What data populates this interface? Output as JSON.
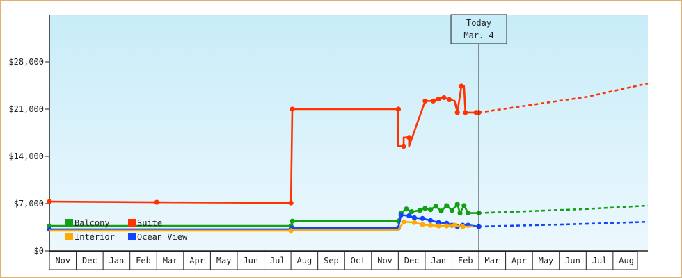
{
  "chart_data": {
    "type": "line",
    "title": "",
    "xlabel": "",
    "ylabel": "",
    "ylim": [
      0,
      35000
    ],
    "xlim": [
      0,
      22.3
    ],
    "y_ticks": [
      {
        "value": 0,
        "label": "$0"
      },
      {
        "value": 7000,
        "label": "$7,000"
      },
      {
        "value": 14000,
        "label": "$14,000"
      },
      {
        "value": 21000,
        "label": "$21,000"
      },
      {
        "value": 28000,
        "label": "$28,000"
      }
    ],
    "x_months": [
      "Nov",
      "Dec",
      "Jan",
      "Feb",
      "Mar",
      "Apr",
      "May",
      "Jun",
      "Jul",
      "Aug",
      "Sep",
      "Oct",
      "Nov",
      "Dec",
      "Jan",
      "Feb",
      "Mar",
      "Apr",
      "May",
      "Jun",
      "Jul",
      "Aug"
    ],
    "today": {
      "line1": "Today",
      "line2": "Mar. 4",
      "x": 16.0
    },
    "legend_position": "bottom-left",
    "grid": false,
    "background": "light-blue gradient",
    "series": [
      {
        "name": "Suite",
        "color": "#ff3300",
        "points": [
          [
            0,
            7300
          ],
          [
            4.0,
            7200
          ],
          [
            9.0,
            7100
          ],
          [
            9.05,
            21000
          ],
          [
            13.0,
            21000
          ],
          [
            13.0,
            15500
          ],
          [
            13.2,
            15500
          ],
          [
            13.2,
            16800
          ],
          [
            13.4,
            16800
          ],
          [
            13.4,
            15500
          ],
          [
            14.0,
            22200
          ],
          [
            14.3,
            22200
          ],
          [
            14.5,
            22500
          ],
          [
            14.7,
            22700
          ],
          [
            14.9,
            22400
          ],
          [
            15.1,
            22200
          ],
          [
            15.2,
            20500
          ],
          [
            15.35,
            24400
          ],
          [
            15.45,
            24400
          ],
          [
            15.5,
            20500
          ],
          [
            15.9,
            20500
          ],
          [
            16.0,
            20500
          ]
        ],
        "dashed": [
          [
            16.0,
            20500
          ],
          [
            20.0,
            22800
          ],
          [
            22.3,
            24800
          ]
        ]
      },
      {
        "name": "Balcony",
        "color": "#11a011",
        "points": [
          [
            0,
            3700
          ],
          [
            9.0,
            3700
          ],
          [
            9.05,
            4400
          ],
          [
            13.0,
            4400
          ],
          [
            13.1,
            5600
          ],
          [
            13.3,
            6200
          ],
          [
            13.5,
            5800
          ],
          [
            13.8,
            6000
          ],
          [
            14.0,
            6300
          ],
          [
            14.2,
            6100
          ],
          [
            14.4,
            6600
          ],
          [
            14.6,
            5900
          ],
          [
            14.8,
            6700
          ],
          [
            15.0,
            6000
          ],
          [
            15.2,
            6900
          ],
          [
            15.3,
            5600
          ],
          [
            15.45,
            6700
          ],
          [
            15.6,
            5600
          ],
          [
            16.0,
            5600
          ]
        ],
        "dashed": [
          [
            16.0,
            5600
          ],
          [
            20.0,
            6200
          ],
          [
            22.3,
            6700
          ]
        ]
      },
      {
        "name": "Ocean View",
        "color": "#1144ff",
        "points": [
          [
            0,
            3200
          ],
          [
            9.0,
            3200
          ],
          [
            9.05,
            3400
          ],
          [
            13.0,
            3400
          ],
          [
            13.1,
            5300
          ],
          [
            13.4,
            5200
          ],
          [
            13.6,
            4900
          ],
          [
            13.9,
            4800
          ],
          [
            14.2,
            4500
          ],
          [
            14.5,
            4200
          ],
          [
            14.8,
            4100
          ],
          [
            15.0,
            3800
          ],
          [
            15.2,
            3600
          ],
          [
            15.4,
            3800
          ],
          [
            15.6,
            3800
          ],
          [
            16.0,
            3600
          ]
        ],
        "dashed": [
          [
            16.0,
            3600
          ],
          [
            20.0,
            4000
          ],
          [
            22.3,
            4300
          ]
        ]
      },
      {
        "name": "Interior",
        "color": "#ffaa00",
        "points": [
          [
            0,
            3000
          ],
          [
            9.0,
            3000
          ],
          [
            9.05,
            3100
          ],
          [
            13.0,
            3100
          ],
          [
            13.2,
            4300
          ],
          [
            13.6,
            4200
          ],
          [
            13.9,
            3900
          ],
          [
            14.2,
            3800
          ],
          [
            14.5,
            3700
          ],
          [
            14.8,
            3700
          ],
          [
            15.1,
            3800
          ],
          [
            15.4,
            3600
          ],
          [
            15.8,
            3600
          ]
        ],
        "dashed": []
      }
    ],
    "legend": [
      {
        "name": "Balcony",
        "color": "#11a011"
      },
      {
        "name": "Suite",
        "color": "#ff3300"
      },
      {
        "name": "Interior",
        "color": "#ffaa00"
      },
      {
        "name": "Ocean View",
        "color": "#1144ff"
      }
    ],
    "markers": {
      "Suite": [
        0,
        4.0,
        9.0,
        9.05,
        13.0,
        13.0,
        13.2,
        13.2,
        13.4,
        14.0,
        14.3,
        14.5,
        14.7,
        14.9,
        15.2,
        15.35,
        15.5,
        15.9,
        16.0
      ],
      "Balcony": [
        0,
        9.0,
        9.05,
        13.0,
        13.1,
        13.3,
        13.5,
        13.8,
        14.0,
        14.2,
        14.4,
        14.6,
        14.8,
        15.0,
        15.2,
        15.3,
        15.45,
        15.6,
        16.0
      ],
      "Ocean View": [
        0,
        9.0,
        9.05,
        13.0,
        13.1,
        13.4,
        13.6,
        13.9,
        14.2,
        14.5,
        14.8,
        15.0,
        15.2,
        15.4,
        15.6,
        16.0
      ],
      "Interior": [
        9.0,
        13.2,
        13.6,
        13.9,
        14.2,
        14.5,
        14.8,
        15.1,
        15.4
      ]
    }
  }
}
